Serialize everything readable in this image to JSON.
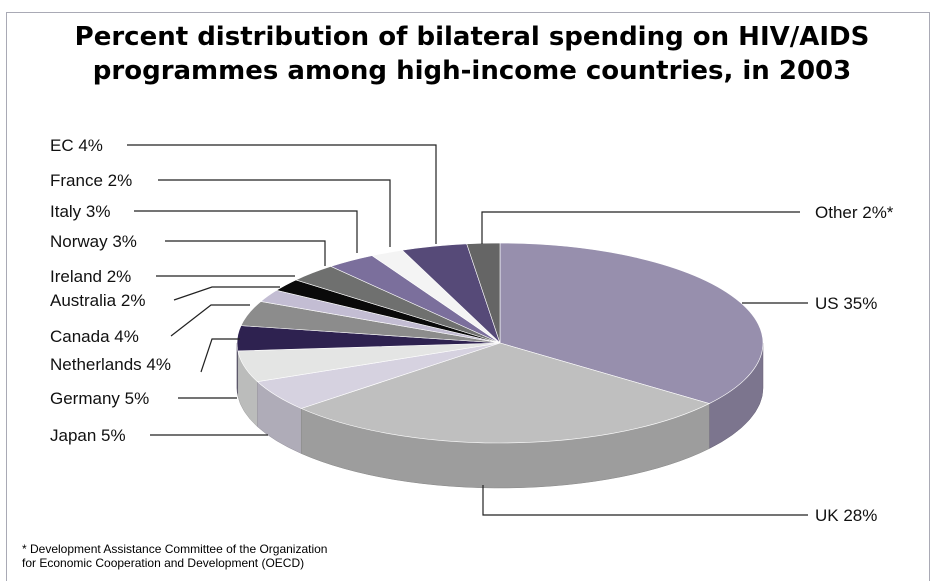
{
  "chart_data": {
    "type": "pie",
    "title_line1": "Percent distribution of bilateral spending on HIV/AIDS",
    "title_line2": "programmes among high-income countries, in 2003",
    "slices": [
      {
        "label": "US",
        "value": 35,
        "color": "#978fad"
      },
      {
        "label": "UK",
        "value": 28,
        "color": "#bfbfbf"
      },
      {
        "label": "Japan",
        "value": 5,
        "color": "#d6d2e0"
      },
      {
        "label": "Germany",
        "value": 5,
        "color": "#e4e5e4"
      },
      {
        "label": "Netherlands",
        "value": 4,
        "color": "#2e2250"
      },
      {
        "label": "Canada",
        "value": 4,
        "color": "#8c8c8c"
      },
      {
        "label": "Australia",
        "value": 2,
        "color": "#c3bdd3"
      },
      {
        "label": "Ireland",
        "value": 2,
        "color": "#0a0a0a"
      },
      {
        "label": "Norway",
        "value": 3,
        "color": "#6f706f"
      },
      {
        "label": "Italy",
        "value": 3,
        "color": "#7b6f9c"
      },
      {
        "label": "France",
        "value": 2,
        "color": "#f4f4f4"
      },
      {
        "label": "EC",
        "value": 4,
        "color": "#564a78"
      },
      {
        "label": "Other",
        "value": 2,
        "color": "#656565"
      }
    ],
    "data_labels": {
      "us": "US  35%",
      "uk": "UK  28%",
      "japan": "Japan  5%",
      "germany": "Germany  5%",
      "netherlands": "Netherlands  4%",
      "canada": "Canada  4%",
      "australia": "Australia  2%",
      "ireland": "Ireland  2%",
      "norway": "Norway  3%",
      "italy": "Italy  3%",
      "france": "France  2%",
      "ec": "EC  4%",
      "other": "Other 2%*"
    }
  },
  "footnote": {
    "line1": "* Development Assistance Committee of the Organization",
    "line2": "for Economic Cooperation and Development (OECD)"
  }
}
